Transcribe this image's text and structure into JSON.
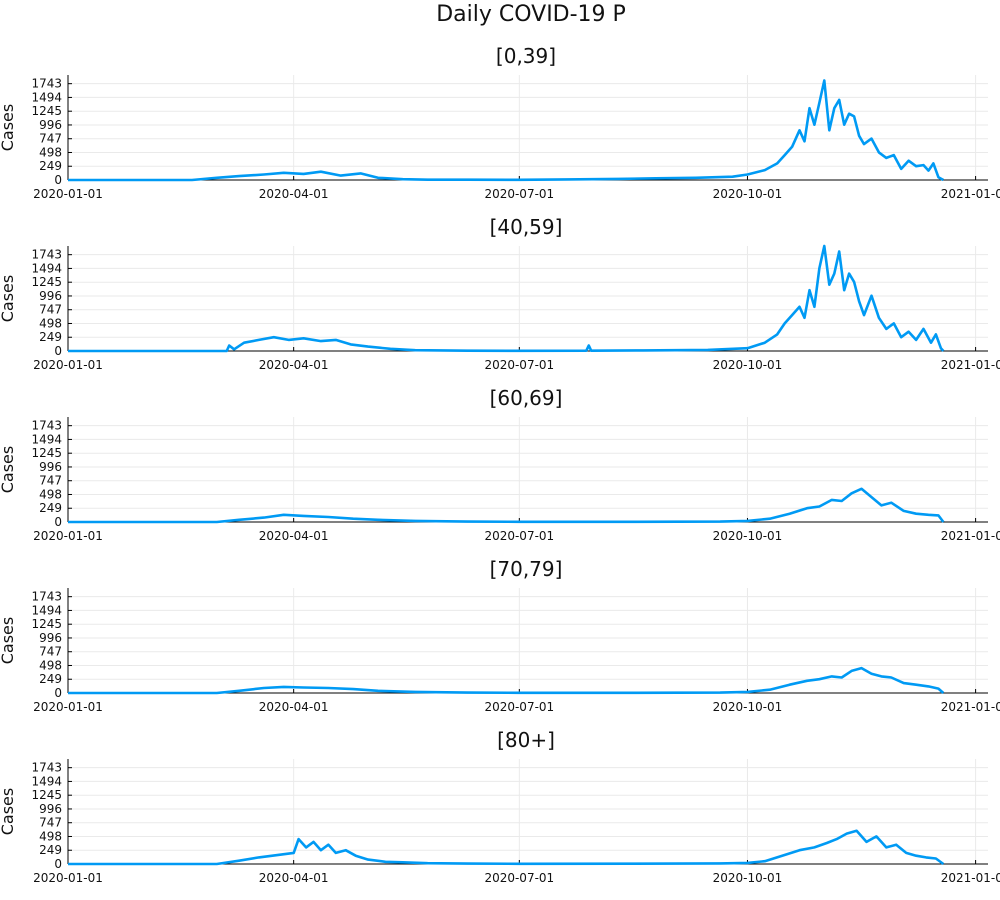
{
  "title": "Daily COVID-19 P",
  "style": {
    "line_color": "#009AF4",
    "grid_color": "#EAEAEA",
    "axis_color": "#000000"
  },
  "chart_data": [
    {
      "type": "line",
      "title": "[0,39]",
      "ylabel": "Cases",
      "xlim": [
        "2020-01-01",
        "2021-01-06"
      ],
      "xticks": [
        "2020-01-01",
        "2020-04-01",
        "2020-07-01",
        "2020-10-01",
        "2021-01-01"
      ],
      "yticks": [
        0,
        249,
        498,
        747,
        996,
        1245,
        1494,
        1743
      ],
      "ylim": [
        0,
        1900
      ],
      "grid": true,
      "series": [
        {
          "x": [
            "2020-01-01",
            "2020-02-20",
            "2020-03-01",
            "2020-03-10",
            "2020-03-20",
            "2020-03-28",
            "2020-04-05",
            "2020-04-12",
            "2020-04-20",
            "2020-04-28",
            "2020-05-05",
            "2020-05-15",
            "2020-05-25",
            "2020-06-10",
            "2020-07-01",
            "2020-07-20",
            "2020-08-10",
            "2020-08-25",
            "2020-09-10",
            "2020-09-25",
            "2020-10-01",
            "2020-10-08",
            "2020-10-13",
            "2020-10-16",
            "2020-10-19",
            "2020-10-22",
            "2020-10-24",
            "2020-10-26",
            "2020-10-28",
            "2020-10-30",
            "2020-11-01",
            "2020-11-03",
            "2020-11-05",
            "2020-11-07",
            "2020-11-09",
            "2020-11-11",
            "2020-11-13",
            "2020-11-15",
            "2020-11-17",
            "2020-11-20",
            "2020-11-23",
            "2020-11-26",
            "2020-11-29",
            "2020-12-02",
            "2020-12-05",
            "2020-12-08",
            "2020-12-11",
            "2020-12-13",
            "2020-12-15",
            "2020-12-17",
            "2020-12-19"
          ],
          "y": [
            0,
            0,
            40,
            70,
            100,
            130,
            110,
            150,
            80,
            120,
            40,
            15,
            5,
            5,
            3,
            10,
            20,
            30,
            40,
            60,
            100,
            180,
            300,
            450,
            600,
            900,
            700,
            1300,
            1000,
            1400,
            1800,
            900,
            1300,
            1450,
            1000,
            1200,
            1150,
            800,
            650,
            750,
            500,
            400,
            450,
            200,
            350,
            250,
            270,
            170,
            300,
            50,
            0
          ]
        }
      ]
    },
    {
      "type": "line",
      "title": "[40,59]",
      "ylabel": "Cases",
      "xlim": [
        "2020-01-01",
        "2021-01-06"
      ],
      "xticks": [
        "2020-01-01",
        "2020-04-01",
        "2020-07-01",
        "2020-10-01",
        "2021-01-01"
      ],
      "yticks": [
        0,
        249,
        498,
        747,
        996,
        1245,
        1494,
        1743
      ],
      "ylim": [
        0,
        1900
      ],
      "grid": true,
      "series": [
        {
          "x": [
            "2020-01-01",
            "2020-03-05",
            "2020-03-06",
            "2020-03-08",
            "2020-03-12",
            "2020-03-18",
            "2020-03-24",
            "2020-03-30",
            "2020-04-05",
            "2020-04-12",
            "2020-04-18",
            "2020-04-24",
            "2020-05-01",
            "2020-05-10",
            "2020-05-20",
            "2020-06-10",
            "2020-07-01",
            "2020-07-28",
            "2020-07-29",
            "2020-07-30",
            "2020-08-20",
            "2020-09-15",
            "2020-10-01",
            "2020-10-08",
            "2020-10-13",
            "2020-10-16",
            "2020-10-19",
            "2020-10-22",
            "2020-10-24",
            "2020-10-26",
            "2020-10-28",
            "2020-10-30",
            "2020-11-01",
            "2020-11-03",
            "2020-11-05",
            "2020-11-07",
            "2020-11-09",
            "2020-11-11",
            "2020-11-13",
            "2020-11-15",
            "2020-11-17",
            "2020-11-20",
            "2020-11-23",
            "2020-11-26",
            "2020-11-29",
            "2020-12-02",
            "2020-12-05",
            "2020-12-08",
            "2020-12-11",
            "2020-12-14",
            "2020-12-16",
            "2020-12-18",
            "2020-12-19"
          ],
          "y": [
            0,
            0,
            100,
            30,
            150,
            200,
            250,
            200,
            230,
            180,
            200,
            120,
            80,
            40,
            15,
            5,
            3,
            5,
            100,
            5,
            10,
            20,
            50,
            150,
            300,
            500,
            650,
            800,
            600,
            1100,
            800,
            1500,
            1900,
            1200,
            1400,
            1800,
            1100,
            1400,
            1250,
            900,
            650,
            1000,
            600,
            400,
            500,
            250,
            350,
            200,
            400,
            150,
            300,
            50,
            0
          ]
        }
      ]
    },
    {
      "type": "line",
      "title": "[60,69]",
      "ylabel": "Cases",
      "xlim": [
        "2020-01-01",
        "2021-01-06"
      ],
      "xticks": [
        "2020-01-01",
        "2020-04-01",
        "2020-07-01",
        "2020-10-01",
        "2021-01-01"
      ],
      "yticks": [
        0,
        249,
        498,
        747,
        996,
        1245,
        1494,
        1743
      ],
      "ylim": [
        0,
        1900
      ],
      "grid": true,
      "series": [
        {
          "x": [
            "2020-01-01",
            "2020-03-01",
            "2020-03-10",
            "2020-03-20",
            "2020-03-28",
            "2020-04-05",
            "2020-04-15",
            "2020-04-25",
            "2020-05-05",
            "2020-05-20",
            "2020-06-10",
            "2020-07-01",
            "2020-08-15",
            "2020-09-20",
            "2020-10-01",
            "2020-10-10",
            "2020-10-18",
            "2020-10-25",
            "2020-10-30",
            "2020-11-04",
            "2020-11-08",
            "2020-11-12",
            "2020-11-16",
            "2020-11-20",
            "2020-11-24",
            "2020-11-28",
            "2020-12-03",
            "2020-12-08",
            "2020-12-13",
            "2020-12-17",
            "2020-12-19"
          ],
          "y": [
            0,
            0,
            40,
            80,
            130,
            110,
            90,
            60,
            40,
            20,
            8,
            3,
            3,
            8,
            20,
            60,
            150,
            250,
            280,
            400,
            380,
            520,
            600,
            450,
            300,
            350,
            200,
            150,
            130,
            120,
            0
          ]
        }
      ]
    },
    {
      "type": "line",
      "title": "[70,79]",
      "ylabel": "Cases",
      "xlim": [
        "2020-01-01",
        "2021-01-06"
      ],
      "xticks": [
        "2020-01-01",
        "2020-04-01",
        "2020-07-01",
        "2020-10-01",
        "2021-01-01"
      ],
      "yticks": [
        0,
        249,
        498,
        747,
        996,
        1245,
        1494,
        1743
      ],
      "ylim": [
        0,
        1900
      ],
      "grid": true,
      "series": [
        {
          "x": [
            "2020-01-01",
            "2020-03-01",
            "2020-03-10",
            "2020-03-20",
            "2020-03-28",
            "2020-04-05",
            "2020-04-15",
            "2020-04-25",
            "2020-05-05",
            "2020-05-20",
            "2020-06-10",
            "2020-07-01",
            "2020-08-15",
            "2020-09-20",
            "2020-10-01",
            "2020-10-10",
            "2020-10-18",
            "2020-10-25",
            "2020-10-30",
            "2020-11-04",
            "2020-11-08",
            "2020-11-12",
            "2020-11-16",
            "2020-11-20",
            "2020-11-24",
            "2020-11-28",
            "2020-12-03",
            "2020-12-08",
            "2020-12-13",
            "2020-12-17",
            "2020-12-19"
          ],
          "y": [
            0,
            0,
            40,
            90,
            110,
            100,
            90,
            70,
            40,
            20,
            8,
            3,
            3,
            8,
            20,
            60,
            150,
            220,
            250,
            300,
            280,
            400,
            450,
            350,
            300,
            280,
            180,
            150,
            120,
            80,
            0
          ]
        }
      ]
    },
    {
      "type": "line",
      "title": "[80+]",
      "ylabel": "Cases",
      "xlim": [
        "2020-01-01",
        "2021-01-06"
      ],
      "xticks": [
        "2020-01-01",
        "2020-04-01",
        "2020-07-01",
        "2020-10-01",
        "2021-01-01"
      ],
      "yticks": [
        0,
        249,
        498,
        747,
        996,
        1245,
        1494,
        1743
      ],
      "ylim": [
        0,
        1900
      ],
      "grid": true,
      "series": [
        {
          "x": [
            "2020-01-01",
            "2020-03-01",
            "2020-03-10",
            "2020-03-18",
            "2020-03-25",
            "2020-04-01",
            "2020-04-03",
            "2020-04-06",
            "2020-04-09",
            "2020-04-12",
            "2020-04-15",
            "2020-04-18",
            "2020-04-22",
            "2020-04-26",
            "2020-05-01",
            "2020-05-08",
            "2020-05-15",
            "2020-05-25",
            "2020-06-10",
            "2020-07-01",
            "2020-08-15",
            "2020-09-20",
            "2020-10-01",
            "2020-10-08",
            "2020-10-15",
            "2020-10-22",
            "2020-10-28",
            "2020-11-02",
            "2020-11-06",
            "2020-11-10",
            "2020-11-14",
            "2020-11-18",
            "2020-11-22",
            "2020-11-26",
            "2020-11-30",
            "2020-12-04",
            "2020-12-08",
            "2020-12-12",
            "2020-12-16",
            "2020-12-19"
          ],
          "y": [
            0,
            0,
            60,
            120,
            160,
            200,
            450,
            300,
            400,
            250,
            350,
            200,
            250,
            150,
            80,
            40,
            30,
            15,
            8,
            3,
            5,
            10,
            20,
            50,
            150,
            250,
            300,
            380,
            450,
            550,
            600,
            400,
            500,
            300,
            350,
            200,
            150,
            120,
            100,
            0
          ]
        }
      ]
    }
  ]
}
